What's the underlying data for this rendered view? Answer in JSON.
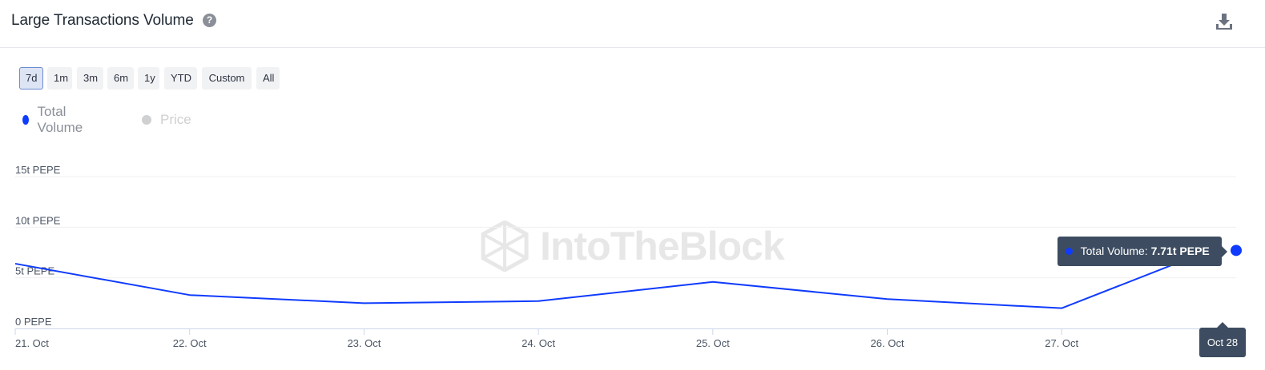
{
  "header": {
    "title": "Large Transactions Volume",
    "help_icon": "question-circle-icon",
    "download_icon": "download-icon"
  },
  "range_buttons": [
    {
      "label": "7d",
      "active": true
    },
    {
      "label": "1m",
      "active": false
    },
    {
      "label": "3m",
      "active": false
    },
    {
      "label": "6m",
      "active": false
    },
    {
      "label": "1y",
      "active": false
    },
    {
      "label": "YTD",
      "active": false
    },
    {
      "label": "Custom",
      "active": false
    },
    {
      "label": "All",
      "active": false
    }
  ],
  "legend": [
    {
      "label": "Total Volume",
      "color": "#0f3bff",
      "enabled": true
    },
    {
      "label": "Price",
      "color": "#cfd0d2",
      "enabled": false
    }
  ],
  "tooltip": {
    "series": "Total Volume:",
    "value": "7.71t PEPE",
    "x_label": "Oct 28"
  },
  "watermark": "IntoTheBlock",
  "chart_data": {
    "type": "line",
    "title": "Large Transactions Volume",
    "x": [
      "21. Oct",
      "22. Oct",
      "23. Oct",
      "24. Oct",
      "25. Oct",
      "26. Oct",
      "27. Oct",
      "Oct 28"
    ],
    "x_tick_labels": [
      "21. Oct",
      "22. Oct",
      "23. Oct",
      "24. Oct",
      "25. Oct",
      "26. Oct",
      "27. Oct"
    ],
    "y_tick_labels": [
      "0 PEPE",
      "5t PEPE",
      "10t PEPE",
      "15t PEPE"
    ],
    "y_ticks": [
      0,
      5,
      10,
      15
    ],
    "ylim": [
      0,
      15
    ],
    "y_unit": "t PEPE",
    "series": [
      {
        "name": "Total Volume",
        "color": "#0f3bff",
        "values": [
          6.4,
          3.3,
          2.5,
          2.7,
          4.6,
          2.9,
          2.0,
          7.71
        ]
      }
    ],
    "grid": true,
    "legend_position": "top-left"
  }
}
